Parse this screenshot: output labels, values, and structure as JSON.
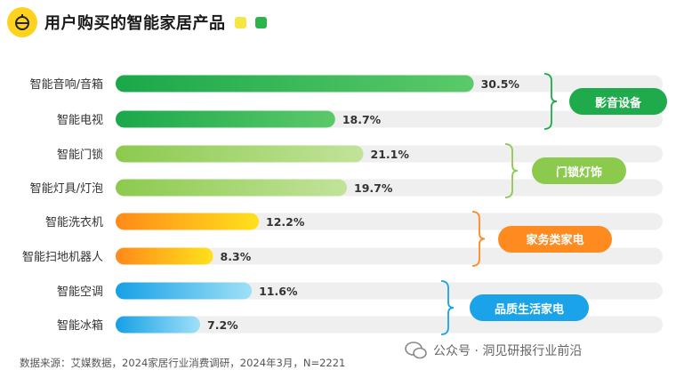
{
  "header": {
    "title": "用户购买的智能家居产品",
    "accent_colors": [
      "#f5e642",
      "#2cb34a"
    ]
  },
  "chart_data": {
    "type": "bar",
    "orientation": "horizontal",
    "title": "用户购买的智能家居产品",
    "xlim": [
      0,
      35
    ],
    "unit": "%",
    "categories": [
      "智能音响/音箱",
      "智能电视",
      "智能门锁",
      "智能灯具/灯泡",
      "智能洗衣机",
      "智能扫地机器人",
      "智能空调",
      "智能冰箱"
    ],
    "values": [
      30.5,
      18.7,
      21.1,
      19.7,
      12.2,
      8.3,
      11.6,
      7.2
    ],
    "value_labels": [
      "30.5%",
      "18.7%",
      "21.1%",
      "19.7%",
      "12.2%",
      "8.3%",
      "11.6%",
      "7.2%"
    ],
    "groups": [
      {
        "name": "影音设备",
        "members": [
          0,
          1
        ],
        "color": "#1faa4b",
        "bar_gradient": [
          "#1aa84a",
          "#5cc96a"
        ]
      },
      {
        "name": "门锁灯饰",
        "members": [
          2,
          3
        ],
        "color": "#8cca4e",
        "bar_gradient": [
          "#8cca4e",
          "#c2e39a"
        ]
      },
      {
        "name": "家务类家电",
        "members": [
          4,
          5
        ],
        "color": "#ff8a1f",
        "bar_gradient": [
          "#ff8a1a",
          "#ffe11c"
        ]
      },
      {
        "name": "品质生活家电",
        "members": [
          6,
          7
        ],
        "color": "#1aa3e8",
        "bar_gradient": [
          "#16a0e6",
          "#9fe0f6"
        ]
      }
    ]
  },
  "footer": {
    "source": "数据来源：艾媒数据，2024家居行业消费调研，2024年3月，N=2221",
    "watermark": "公众号 · 洞见研报行业前沿"
  }
}
